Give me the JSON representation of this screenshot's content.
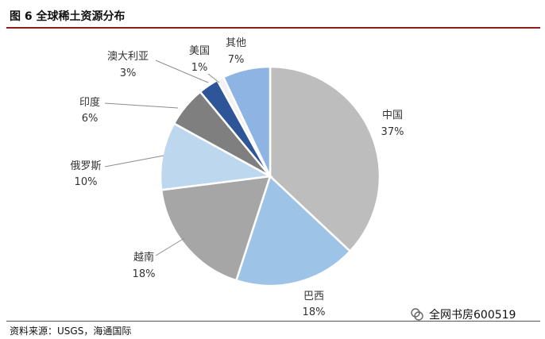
{
  "title": "图 6 全球稀土资源分布",
  "source": "资料来源：USGS，海通国际",
  "watermark": "全网书房600519",
  "chart_data": {
    "type": "pie",
    "title": "",
    "slices": [
      {
        "label": "中国",
        "value": 37,
        "pct_text": "37%",
        "color": "#bdbdbd"
      },
      {
        "label": "巴西",
        "value": 18,
        "pct_text": "18%",
        "color": "#9dc3e6"
      },
      {
        "label": "越南",
        "value": 18,
        "pct_text": "18%",
        "color": "#a6a6a6"
      },
      {
        "label": "俄罗斯",
        "value": 10,
        "pct_text": "10%",
        "color": "#bdd7ee"
      },
      {
        "label": "印度",
        "value": 6,
        "pct_text": "6%",
        "color": "#7f7f7f"
      },
      {
        "label": "澳大利亚",
        "value": 3,
        "pct_text": "3%",
        "color": "#2e5597"
      },
      {
        "label": "美国",
        "value": 1,
        "pct_text": "1%",
        "color": "#f2f2f2"
      },
      {
        "label": "其他",
        "value": 7,
        "pct_text": "7%",
        "color": "#8eb4e3"
      }
    ]
  }
}
